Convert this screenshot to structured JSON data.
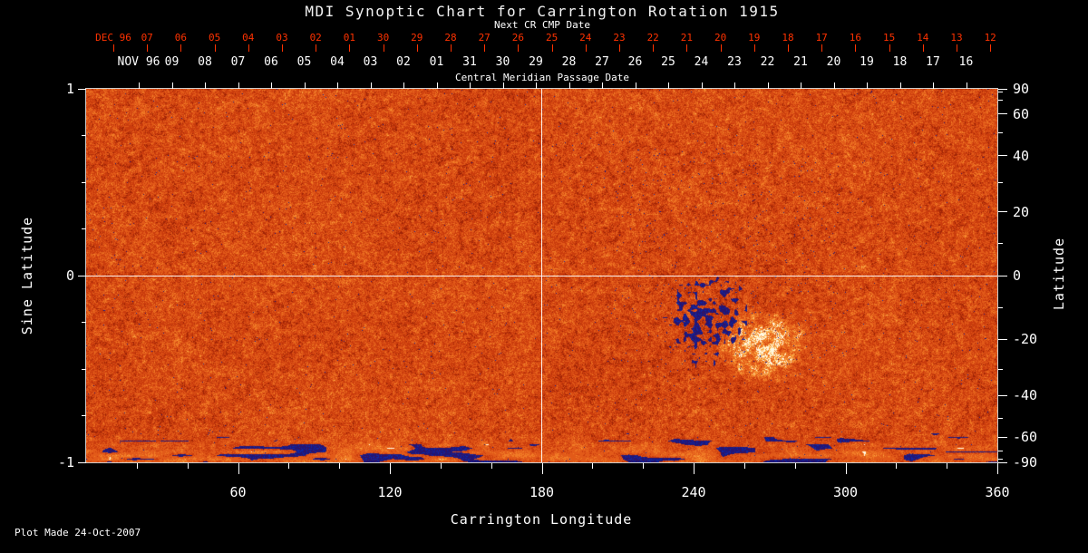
{
  "title": "MDI Synoptic Chart for Carrington Rotation 1915",
  "footer": "Plot Made 24-Oct-2007",
  "colors": {
    "background": "#000000",
    "text": "#ffffff",
    "next_cr_axis": "#ff3200",
    "map_base_orange": "#cf4410",
    "negative_polarity_blue": "#1c187d",
    "positive_polarity_bright": "#fff8e2",
    "reference_lines": "#ffffff"
  },
  "chart_data": {
    "type": "heatmap",
    "title": "MDI Synoptic Chart for Carrington Rotation 1915",
    "description": "Full-disk MDI magnetogram synoptic map rendered in a red-orange colormap with fine speckle noise; sparse dark navy negative-polarity specks, a dense dark-blue active-region cluster near 245 deg Carrington longitude at sine latitude -0.3 paired with a bright yellow-white plage just southeast of it, and streaky mixed dark-blue/purple and bright bands along the south polar edge (sine latitude below -0.85).",
    "top_axis_next_cr": {
      "label": "Next CR CMP Date",
      "month_tick": "DEC 96",
      "day_ticks": [
        "07",
        "06",
        "05",
        "04",
        "03",
        "02",
        "01",
        "30",
        "29",
        "28",
        "27",
        "26",
        "25",
        "24",
        "23",
        "22",
        "21",
        "20",
        "19",
        "18",
        "17",
        "16",
        "15",
        "14",
        "13",
        "12"
      ]
    },
    "top_axis_cmp": {
      "label": "Central Meridian Passage Date",
      "month_tick": "NOV 96",
      "day_ticks": [
        "09",
        "08",
        "07",
        "06",
        "05",
        "04",
        "03",
        "02",
        "01",
        "31",
        "30",
        "29",
        "28",
        "27",
        "26",
        "25",
        "24",
        "23",
        "22",
        "21",
        "20",
        "19",
        "18",
        "17",
        "16"
      ]
    },
    "x_axis": {
      "label": "Carrington Longitude",
      "range": [
        0,
        360
      ],
      "major_ticks": [
        60,
        120,
        180,
        240,
        300,
        360
      ],
      "minor_tick_step": 20
    },
    "y_axis_left": {
      "label": "Sine Latitude",
      "range": [
        -1,
        1
      ],
      "major_ticks": [
        1,
        0,
        -1
      ],
      "minor_ticks": [
        -0.75,
        -0.5,
        -0.25,
        0.25,
        0.5,
        0.75
      ]
    },
    "y_axis_right": {
      "label": "Latitude",
      "major_ticks": [
        90,
        60,
        40,
        20,
        0,
        -20,
        -40,
        -60,
        -90
      ],
      "minor_ticks": [
        80,
        70,
        50,
        30,
        10,
        -10,
        -30,
        -50,
        -70,
        -80
      ]
    },
    "reference_lines": {
      "longitude": 180,
      "sine_latitude": 0
    },
    "features": [
      {
        "name": "active-region-dark-cluster",
        "longitude": 245,
        "sine_latitude": -0.28,
        "polarity": "negative (dark blue)"
      },
      {
        "name": "bright-plage",
        "longitude": 267,
        "sine_latitude": -0.42,
        "polarity": "positive (yellow-white)"
      },
      {
        "name": "south-polar-streaks",
        "sine_latitude_below": -0.85
      }
    ]
  }
}
